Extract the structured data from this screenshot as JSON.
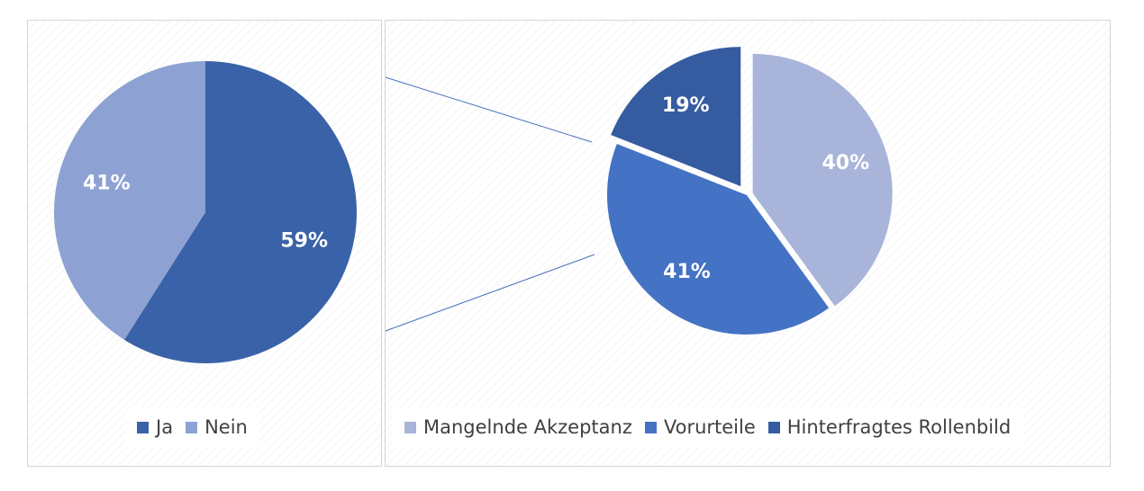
{
  "chart_data": [
    {
      "type": "pie",
      "categories": [
        "Ja",
        "Nein"
      ],
      "values": [
        59,
        41
      ],
      "value_labels": [
        "59%",
        "41%"
      ],
      "colors": [
        "#3a62a8",
        "#8da2d3"
      ],
      "legend_position": "bottom"
    },
    {
      "type": "pie",
      "categories": [
        "Mangelnde Akzeptanz",
        "Vorurteile",
        "Hinterfragtes Rollenbild"
      ],
      "values": [
        40,
        41,
        19
      ],
      "value_labels": [
        "40%",
        "41%",
        "19%"
      ],
      "colors": [
        "#a8b4d9",
        "#4472c4",
        "#355ba1"
      ],
      "legend_position": "bottom",
      "exploded": true
    }
  ],
  "connector_color": "#4a72bc"
}
